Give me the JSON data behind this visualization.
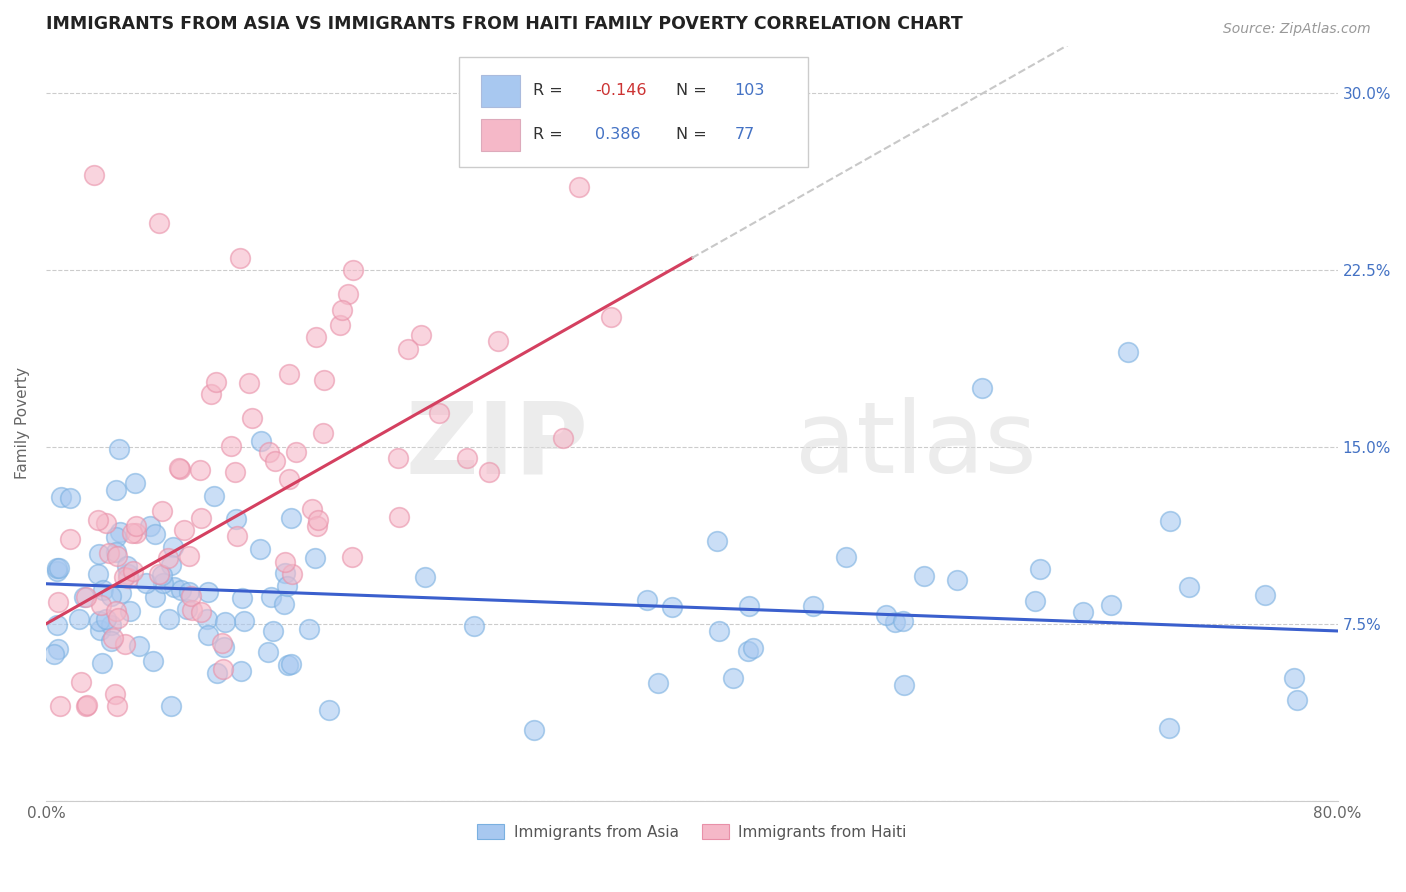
{
  "title": "IMMIGRANTS FROM ASIA VS IMMIGRANTS FROM HAITI FAMILY POVERTY CORRELATION CHART",
  "source": "Source: ZipAtlas.com",
  "ylabel": "Family Poverty",
  "xlim": [
    0.0,
    0.8
  ],
  "ylim": [
    0.0,
    0.32
  ],
  "right_ytick_color": "#4472c4",
  "legend_r1": "-0.146",
  "legend_n1": "103",
  "legend_r2": "0.386",
  "legend_n2": "77",
  "color_asia": "#a8c8f0",
  "color_haiti": "#f5b8c8",
  "trendline_asia_color": "#3a5fcd",
  "trendline_haiti_color": "#d44060",
  "trendline_ext_color": "#c8c8c8",
  "watermark_zip": "ZIP",
  "watermark_atlas": "atlas"
}
